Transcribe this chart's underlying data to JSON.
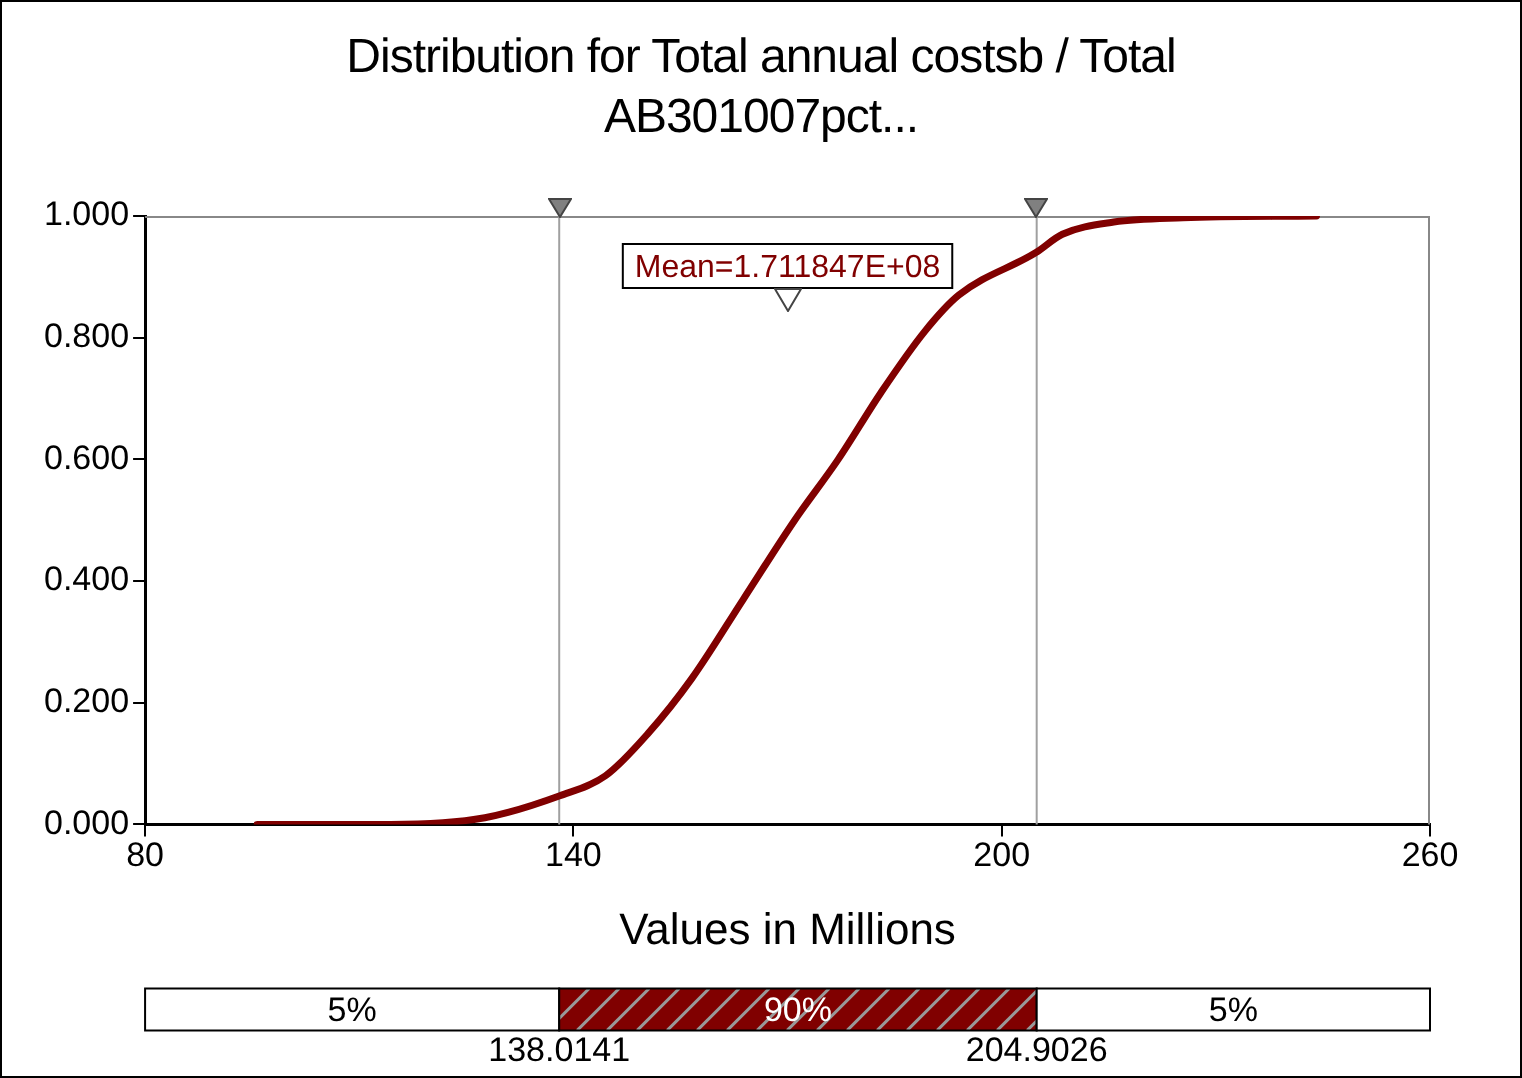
{
  "chart_data": {
    "type": "line",
    "title": "Distribution for Total annual costsb / Total AB301007pct...",
    "xlabel": "Values in Millions",
    "series": [
      {
        "color": "#800000",
        "x": [
          95.7,
          114.4,
          127.6,
          138.1,
          144.5,
          150.5,
          156.6,
          163.8,
          171.0,
          177.1,
          183.1,
          189.2,
          194.0,
          204.8,
          208.5,
          215.7,
          225.4,
          244.1
        ],
        "values": [
          0,
          0,
          0.011,
          0.047,
          0.08,
          0.15,
          0.24,
          0.37,
          0.5,
          0.6,
          0.71,
          0.81,
          0.87,
          0.94,
          0.97,
          0.99,
          0.997,
          1.0
        ]
      }
    ],
    "xlim": [
      80,
      260
    ],
    "xticks": [
      80,
      140,
      200,
      260
    ],
    "ylim": [
      0,
      1
    ],
    "yticks": [
      {
        "value": 0,
        "label": "0.000"
      },
      {
        "value": 0.2,
        "label": "0.200"
      },
      {
        "value": 0.4,
        "label": "0.400"
      },
      {
        "value": 0.6,
        "label": "0.600"
      },
      {
        "value": 0.8,
        "label": "0.800"
      },
      {
        "value": 1,
        "label": "1.000"
      }
    ],
    "ref_lines": [
      {
        "axis": "x",
        "value": 138.0141,
        "color": "#a0a0a0"
      },
      {
        "axis": "x",
        "value": 204.9026,
        "color": "#a0a0a0"
      }
    ],
    "annotations": [
      "Mean=1.711847E+08",
      "5%",
      "90%",
      "5%",
      "138.0141",
      "204.9026"
    ],
    "grid": false,
    "legend": false,
    "marker": "none",
    "line_style": "solid"
  }
}
